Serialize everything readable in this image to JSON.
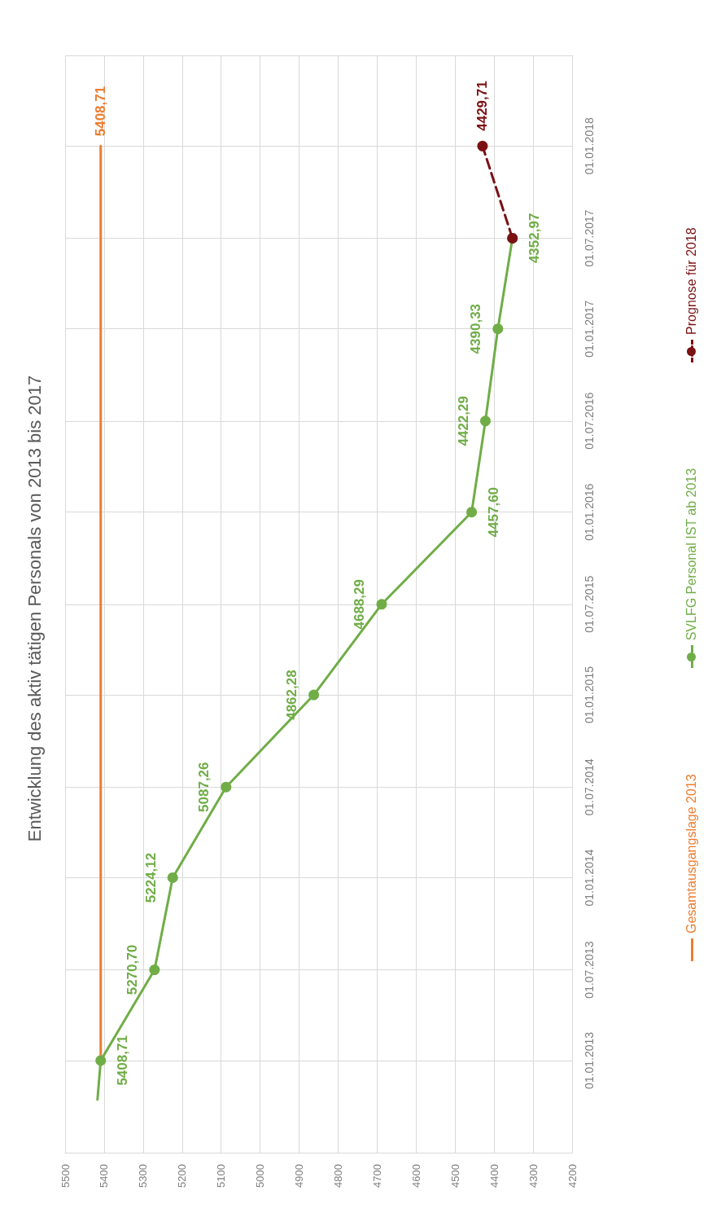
{
  "chart_data": {
    "type": "line",
    "orientation": "horizontal",
    "title": "Entwicklung des aktiv tätigen Personals von 2013 bis 2017",
    "series": [
      {
        "name": "Gesamtausgangslage 2013",
        "color": "#ed7d31",
        "x": [
          "2013-01-01",
          "2018-01-01"
        ],
        "values": [
          5408.71,
          5408.71
        ],
        "value_labels": [
          null,
          "5408,71"
        ],
        "marker": "none",
        "line_style": "solid"
      },
      {
        "name": "SVLFG Personal IST ab 2013",
        "color": "#70ad47",
        "x": [
          "2013-01-01",
          "2013-07-01",
          "2014-01-01",
          "2014-07-01",
          "2015-01-01",
          "2015-07-01",
          "2016-01-01",
          "2016-07-01",
          "2017-01-01",
          "2017-07-01"
        ],
        "values": [
          5408.71,
          5270.7,
          5224.12,
          5087.26,
          4862.28,
          4688.29,
          4457.6,
          4422.29,
          4390.33,
          4352.97
        ],
        "value_labels": [
          "5408,71",
          "5270,70",
          "5224,12",
          "5087,26",
          "4862,28",
          "4688,29",
          "4457,60",
          "4422,29",
          "4390,33",
          "4352,97"
        ],
        "marker": "circle",
        "line_style": "solid"
      },
      {
        "color": "#70ad47",
        "x": [
          "2012-10-15",
          "2013-01-01"
        ],
        "values": [
          5417,
          5408.71
        ],
        "marker": "none",
        "line_style": "solid"
      },
      {
        "name": "Prognose für 2018",
        "color": "#7b1113",
        "x": [
          "2017-07-01",
          "2018-01-01"
        ],
        "values": [
          4352.97,
          4429.71
        ],
        "value_labels": [
          null,
          "4429,71"
        ],
        "marker": "circle",
        "line_style": "dashed"
      }
    ],
    "xlim": [
      5500,
      4200
    ],
    "xticks": [
      5500,
      5400,
      5300,
      5200,
      5100,
      5000,
      4900,
      4800,
      4700,
      4600,
      4500,
      4400,
      4300,
      4200
    ],
    "ylim": [
      "2012-07-01",
      "2018-07-01"
    ],
    "yticks": [
      {
        "value": "2012-07-01",
        "label": null
      },
      {
        "value": "2013-01-01",
        "label": "01.01.2013"
      },
      {
        "value": "2013-07-01",
        "label": "01.07.2013"
      },
      {
        "value": "2014-01-01",
        "label": "01.01.2014"
      },
      {
        "value": "2014-07-01",
        "label": "01.07.2014"
      },
      {
        "value": "2015-01-01",
        "label": "01.01.2015"
      },
      {
        "value": "2015-07-01",
        "label": "01.07.2015"
      },
      {
        "value": "2016-01-01",
        "label": "01.01.2016"
      },
      {
        "value": "2016-07-01",
        "label": "01.07.2016"
      },
      {
        "value": "2017-01-01",
        "label": "01.01.2017"
      },
      {
        "value": "2017-07-01",
        "label": "01.07.2017"
      },
      {
        "value": "2018-01-01",
        "label": "01.01.2018"
      },
      {
        "value": "2018-07-01",
        "label": null
      }
    ],
    "grid": true,
    "legend": "right"
  }
}
